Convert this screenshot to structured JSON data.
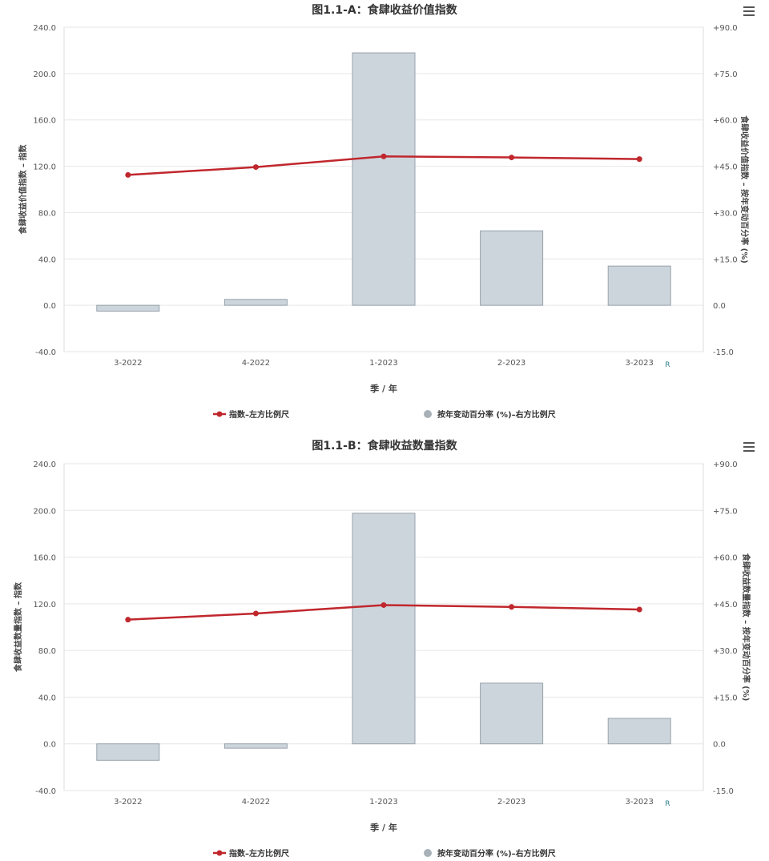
{
  "charts": [
    {
      "title": "图1.1-A：食肆收益价值指数",
      "ylabel_left": "食肆收益价值指数 – 指数",
      "ylabel_right": "食肆收益价值指数 – 按年变动百分率 (%)",
      "xlabel": "季 / 年",
      "legend_line": "指数–左方比例尺",
      "legend_bar": "按年变动百分率 (%)–右方比例尺",
      "menu_icon": "hamburger-menu-icon",
      "colors": {
        "line": "#c0272d",
        "bar_fill": "#cdd5dc",
        "bar_stroke": "#98a2ab",
        "legend_bar_marker": "#a9b1b8"
      }
    },
    {
      "title": "图1.1-B：食肆收益数量指数",
      "ylabel_left": "食肆收益数量指数 – 指数",
      "ylabel_right": "食肆收益数量指数 – 按年变动百分率 (%)",
      "xlabel": "季 / 年",
      "legend_line": "指数–左方比例尺",
      "legend_bar": "按年变动百分率 (%)–右方比例尺",
      "menu_icon": "hamburger-menu-icon",
      "colors": {
        "line": "#c0272d",
        "bar_fill": "#cdd5dc",
        "bar_stroke": "#98a2ab",
        "legend_bar_marker": "#a9b1b8"
      }
    }
  ],
  "chart_data": [
    {
      "type": "bar+line",
      "categories": [
        "3-2022",
        "4-2022",
        "1-2023",
        "2-2023",
        "3-2023"
      ],
      "category_markers": [
        "",
        "",
        "",
        "",
        "R"
      ],
      "left_axis": {
        "ylim": [
          -40,
          240
        ],
        "ticks": [
          "-40.0",
          "0.0",
          "40.0",
          "80.0",
          "120.0",
          "160.0",
          "200.0",
          "240.0"
        ]
      },
      "right_axis": {
        "ylim": [
          -15,
          90
        ],
        "ticks": [
          "-15.0",
          "0.0",
          "+15.0",
          "+30.0",
          "+45.0",
          "+60.0",
          "+75.0",
          "+90.0"
        ]
      },
      "series": [
        {
          "name": "指数–左方比例尺",
          "kind": "line",
          "axis": "left",
          "values": [
            112.5,
            119.3,
            128.5,
            127.6,
            126.2
          ]
        },
        {
          "name": "按年变动百分率 (%)–右方比例尺",
          "kind": "bar",
          "axis": "right",
          "values": [
            -1.9,
            1.9,
            81.7,
            24.1,
            12.7
          ]
        }
      ],
      "grid": true,
      "legend_position": "bottom"
    },
    {
      "type": "bar+line",
      "categories": [
        "3-2022",
        "4-2022",
        "1-2023",
        "2-2023",
        "3-2023"
      ],
      "category_markers": [
        "",
        "",
        "",
        "",
        "R"
      ],
      "left_axis": {
        "ylim": [
          -40,
          240
        ],
        "ticks": [
          "-40.0",
          "0.0",
          "40.0",
          "80.0",
          "120.0",
          "160.0",
          "200.0",
          "240.0"
        ]
      },
      "right_axis": {
        "ylim": [
          -15,
          90
        ],
        "ticks": [
          "-15.0",
          "0.0",
          "+15.0",
          "+30.0",
          "+45.0",
          "+60.0",
          "+75.0",
          "+90.0"
        ]
      },
      "series": [
        {
          "name": "指数–左方比例尺",
          "kind": "line",
          "axis": "left",
          "values": [
            106.4,
            111.7,
            118.9,
            117.3,
            115.1
          ]
        },
        {
          "name": "按年变动百分率 (%)–右方比例尺",
          "kind": "bar",
          "axis": "right",
          "values": [
            -5.3,
            -1.4,
            74.1,
            19.5,
            8.2
          ]
        }
      ],
      "grid": true,
      "legend_position": "bottom"
    }
  ]
}
